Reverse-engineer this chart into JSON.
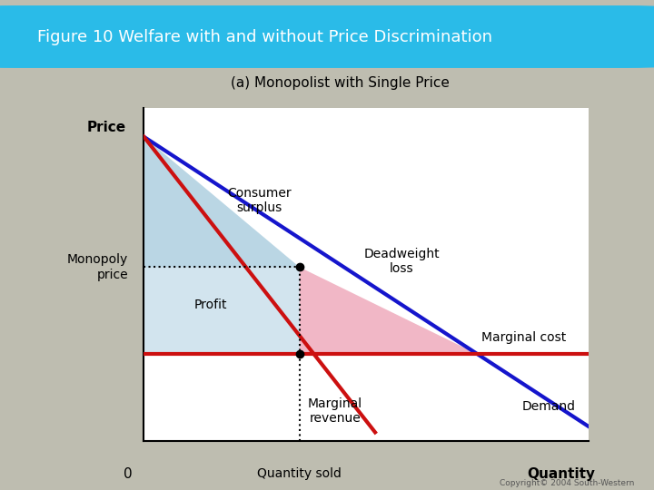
{
  "title_banner": "Figure 10 Welfare with and without Price Discrimination",
  "subtitle": "(a) Monopolist with Single Price",
  "banner_color": "#2ABBE8",
  "banner_text_color": "#FFFFFF",
  "bg_color": "#BEBDB0",
  "plot_bg_color": "#FFFFFF",
  "ylabel": "Price",
  "xlabel": "Quantity",
  "x_quantity_sold_label": "Quantity sold",
  "monopoly_price_label": "Monopoly\nprice",
  "consumer_surplus_label": "Consumer\nsurplus",
  "deadweight_loss_label": "Deadweight\nloss",
  "profit_label": "Profit",
  "marginal_cost_label": "Marginal cost",
  "marginal_revenue_label": "Marginal\nrevenue",
  "demand_label": "Demand",
  "zero_label": "0",
  "demand_color": "#1515CC",
  "mr_color": "#CC1010",
  "mc_color": "#CC1010",
  "consumer_surplus_fill": "#AECFE0",
  "deadweight_fill": "#F0B0C0",
  "profit_fill": "#AECFE0",
  "x_qs": 3.5,
  "y_monopoly": 6.0,
  "y_mc": 3.0,
  "demand_x0": 0.0,
  "demand_y0": 10.5,
  "demand_x1": 10.0,
  "demand_y1": 0.5,
  "mr_x0": 0.0,
  "mr_y0": 10.5,
  "mr_x1": 5.2,
  "mr_y1": 0.3,
  "xlim": [
    0,
    10
  ],
  "ylim": [
    0,
    11.5
  ]
}
